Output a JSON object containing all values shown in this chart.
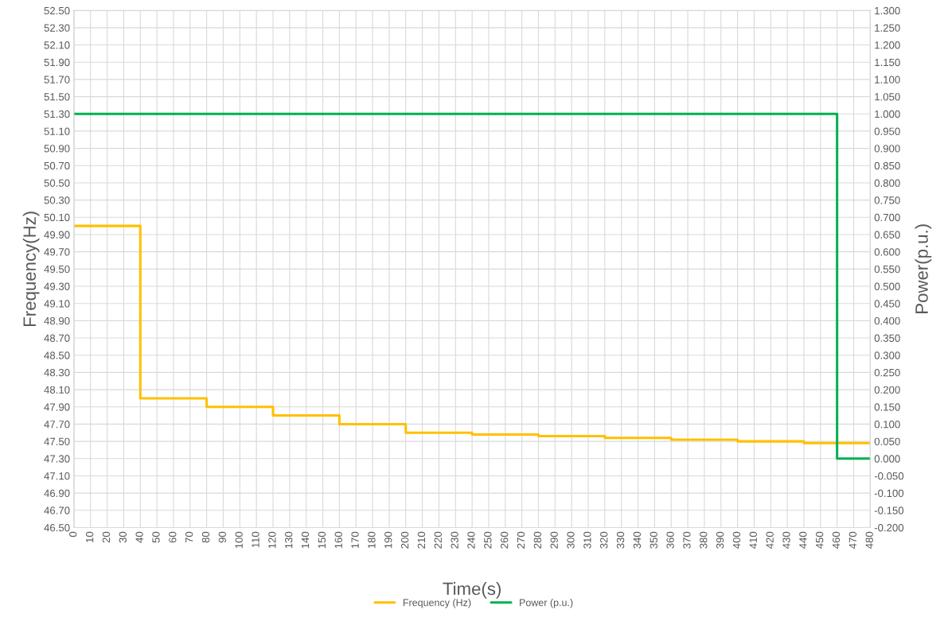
{
  "chart_data": {
    "type": "step",
    "xlabel": "Time(s)",
    "ylabel": "Frequency(Hz)",
    "y2label": "Power(p.u.)",
    "xlim": [
      0,
      480
    ],
    "xticks": [
      0,
      10,
      20,
      30,
      40,
      50,
      60,
      70,
      80,
      90,
      100,
      110,
      120,
      130,
      140,
      150,
      160,
      170,
      180,
      190,
      200,
      210,
      220,
      230,
      240,
      250,
      260,
      270,
      280,
      290,
      300,
      310,
      320,
      330,
      340,
      350,
      360,
      370,
      380,
      390,
      400,
      410,
      420,
      430,
      440,
      450,
      460,
      470,
      480
    ],
    "ylim": [
      46.5,
      52.5
    ],
    "yticks": [
      {
        "value": 46.5,
        "label": "46.50"
      },
      {
        "value": 46.7,
        "label": "46.70"
      },
      {
        "value": 46.9,
        "label": "46.90"
      },
      {
        "value": 47.1,
        "label": "47.10"
      },
      {
        "value": 47.3,
        "label": "47.30"
      },
      {
        "value": 47.5,
        "label": "47.50"
      },
      {
        "value": 47.7,
        "label": "47.70"
      },
      {
        "value": 47.9,
        "label": "47.90"
      },
      {
        "value": 48.1,
        "label": "48.10"
      },
      {
        "value": 48.3,
        "label": "48.30"
      },
      {
        "value": 48.5,
        "label": "48.50"
      },
      {
        "value": 48.7,
        "label": "48.70"
      },
      {
        "value": 48.9,
        "label": "48.90"
      },
      {
        "value": 49.1,
        "label": "49.10"
      },
      {
        "value": 49.3,
        "label": "49.30"
      },
      {
        "value": 49.5,
        "label": "49.50"
      },
      {
        "value": 49.7,
        "label": "49.70"
      },
      {
        "value": 49.9,
        "label": "49.90"
      },
      {
        "value": 50.1,
        "label": "50.10"
      },
      {
        "value": 50.3,
        "label": "50.30"
      },
      {
        "value": 50.5,
        "label": "50.50"
      },
      {
        "value": 50.7,
        "label": "50.70"
      },
      {
        "value": 50.9,
        "label": "50.90"
      },
      {
        "value": 51.1,
        "label": "51.10"
      },
      {
        "value": 51.3,
        "label": "51.30"
      },
      {
        "value": 51.5,
        "label": "51.50"
      },
      {
        "value": 51.7,
        "label": "51.70"
      },
      {
        "value": 51.9,
        "label": "51.90"
      },
      {
        "value": 52.1,
        "label": "52.10"
      },
      {
        "value": 52.3,
        "label": "52.30"
      },
      {
        "value": 52.5,
        "label": "52.50"
      }
    ],
    "y2lim": [
      -0.2,
      1.3
    ],
    "y2ticks": [
      {
        "value": -0.2,
        "label": "-0.200"
      },
      {
        "value": -0.15,
        "label": "-0.150"
      },
      {
        "value": -0.1,
        "label": "-0.100"
      },
      {
        "value": -0.05,
        "label": "-0.050"
      },
      {
        "value": 0,
        "label": "0.000"
      },
      {
        "value": 0.05,
        "label": "0.050"
      },
      {
        "value": 0.1,
        "label": "0.100"
      },
      {
        "value": 0.15,
        "label": "0.150"
      },
      {
        "value": 0.2,
        "label": "0.200"
      },
      {
        "value": 0.25,
        "label": "0.250"
      },
      {
        "value": 0.3,
        "label": "0.300"
      },
      {
        "value": 0.35,
        "label": "0.350"
      },
      {
        "value": 0.4,
        "label": "0.400"
      },
      {
        "value": 0.45,
        "label": "0.450"
      },
      {
        "value": 0.5,
        "label": "0.500"
      },
      {
        "value": 0.55,
        "label": "0.550"
      },
      {
        "value": 0.6,
        "label": "0.600"
      },
      {
        "value": 0.65,
        "label": "0.650"
      },
      {
        "value": 0.7,
        "label": "0.700"
      },
      {
        "value": 0.75,
        "label": "0.750"
      },
      {
        "value": 0.8,
        "label": "0.800"
      },
      {
        "value": 0.85,
        "label": "0.850"
      },
      {
        "value": 0.9,
        "label": "0.900"
      },
      {
        "value": 0.95,
        "label": "0.950"
      },
      {
        "value": 1.0,
        "label": "1.000"
      },
      {
        "value": 1.05,
        "label": "1.050"
      },
      {
        "value": 1.1,
        "label": "1.100"
      },
      {
        "value": 1.15,
        "label": "1.150"
      },
      {
        "value": 1.2,
        "label": "1.200"
      },
      {
        "value": 1.25,
        "label": "1.250"
      },
      {
        "value": 1.3,
        "label": "1.300"
      }
    ],
    "grid": true,
    "legend": "bottom",
    "series": [
      {
        "name": "Frequency (Hz)",
        "color": "#ffc000",
        "x": [
          0,
          40,
          80,
          120,
          160,
          200,
          240,
          280,
          320,
          360,
          400,
          440,
          480
        ],
        "values": [
          50.0,
          48.0,
          47.9,
          47.8,
          47.7,
          47.6,
          47.58,
          47.56,
          47.54,
          47.52,
          47.5,
          47.48,
          47.48
        ]
      },
      {
        "name": "Power (p.u.)",
        "color": "#00b050",
        "axis": "y2",
        "x": [
          0,
          460,
          480
        ],
        "values": [
          1.0,
          0.0,
          0.0
        ]
      }
    ]
  }
}
